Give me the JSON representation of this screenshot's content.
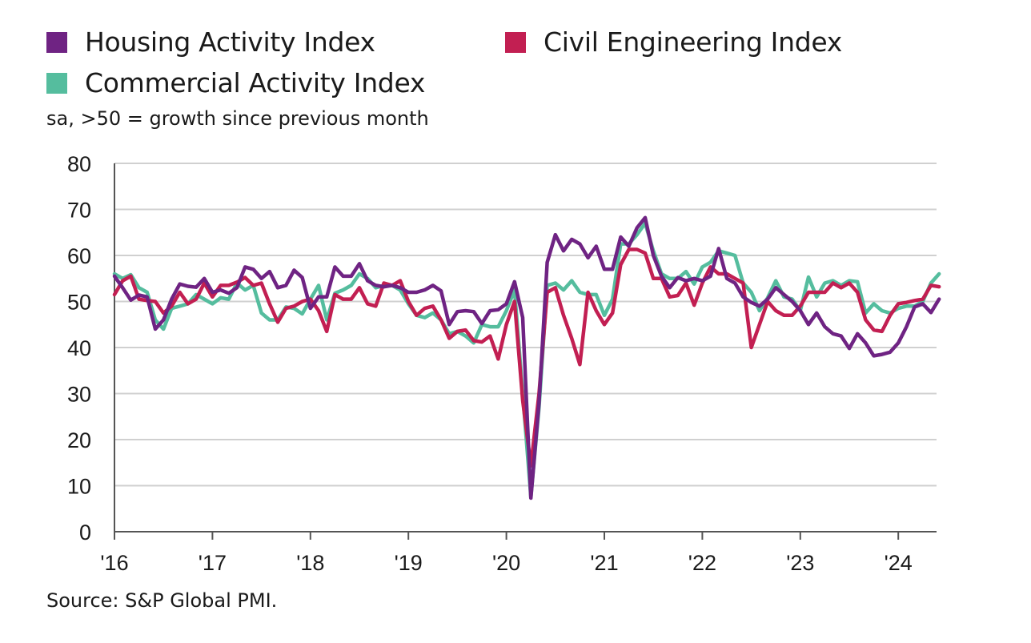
{
  "legend": [
    {
      "label": "Housing Activity Index",
      "color": "#6f2383"
    },
    {
      "label": "Civil Engineering Index",
      "color": "#c21f52"
    },
    {
      "label": "Commercial Activity Index",
      "color": "#55bd9e"
    }
  ],
  "note": "sa, >50 = growth since previous month",
  "source": "Source: S&P Global PMI.",
  "chart_data": {
    "type": "line",
    "x_unit": "monthly, Jan 2016 – Jun 2024",
    "x_ticks": [
      "'16",
      "'17",
      "'18",
      "'19",
      "'20",
      "'21",
      "'22",
      "'23",
      "'24"
    ],
    "y_ticks": [
      0,
      10,
      20,
      30,
      40,
      50,
      60,
      70,
      80
    ],
    "ylim": [
      0,
      80
    ],
    "grid": "horizontal",
    "legend_position": "top",
    "series": [
      {
        "name": "Housing Activity Index",
        "color": "#6f2383",
        "values": [
          55.5,
          53.0,
          50.3,
          51.4,
          51.0,
          44.0,
          46.0,
          50.5,
          53.8,
          53.3,
          53.1,
          55.0,
          52.0,
          52.5,
          51.8,
          53.0,
          57.5,
          57.0,
          55.0,
          56.5,
          53.0,
          53.5,
          56.8,
          55.2,
          48.5,
          51.0,
          51.0,
          57.5,
          55.5,
          55.5,
          58.2,
          54.5,
          53.5,
          53.2,
          53.5,
          53.0,
          52.0,
          52.0,
          52.5,
          53.5,
          52.3,
          45.0,
          47.8,
          48.0,
          47.8,
          45.2,
          48.0,
          48.2,
          49.5,
          54.3,
          46.5,
          7.3,
          28.0,
          58.5,
          64.5,
          61.0,
          63.5,
          62.5,
          59.5,
          62.0,
          57.0,
          57.0,
          64.0,
          62.0,
          66.0,
          68.2,
          60.0,
          55.5,
          53.0,
          55.2,
          54.5,
          55.0,
          54.5,
          55.5,
          61.5,
          55.0,
          54.0,
          51.0,
          49.8,
          49.0,
          50.5,
          53.0,
          51.5,
          50.0,
          48.0,
          45.0,
          47.5,
          44.5,
          43.0,
          42.5,
          39.8,
          43.0,
          41.0,
          38.2,
          38.5,
          39.0,
          41.0,
          44.5,
          48.8,
          49.5,
          47.6,
          50.5
        ]
      },
      {
        "name": "Civil Engineering Index",
        "color": "#c21f52",
        "values": [
          51.5,
          54.5,
          55.5,
          50.5,
          50.2,
          50.0,
          47.5,
          49.0,
          52.0,
          49.5,
          50.5,
          54.0,
          51.0,
          53.5,
          53.5,
          54.2,
          55.2,
          53.5,
          54.0,
          49.5,
          45.5,
          48.5,
          49.0,
          50.0,
          50.5,
          48.0,
          43.5,
          51.5,
          50.5,
          50.5,
          53.0,
          49.5,
          49.0,
          54.0,
          53.5,
          54.5,
          50.0,
          47.0,
          48.5,
          49.0,
          46.0,
          42.0,
          43.5,
          43.8,
          41.5,
          41.2,
          42.5,
          37.5,
          45.0,
          50.0,
          28.5,
          14.3,
          30.0,
          52.0,
          53.0,
          47.0,
          42.0,
          36.3,
          52.0,
          48.0,
          45.0,
          47.5,
          58.0,
          61.3,
          61.3,
          60.5,
          55.0,
          55.0,
          51.0,
          51.3,
          54.0,
          49.2,
          54.0,
          57.5,
          56.0,
          56.0,
          55.0,
          54.0,
          40.0,
          45.0,
          50.0,
          48.0,
          47.0,
          47.0,
          49.0,
          52.0,
          52.0,
          52.0,
          54.0,
          53.0,
          54.0,
          52.0,
          46.0,
          43.8,
          43.5,
          47.0,
          49.5,
          49.8,
          50.2,
          50.5,
          53.5,
          53.2
        ]
      },
      {
        "name": "Commercial Activity Index",
        "color": "#55bd9e",
        "values": [
          56.0,
          55.0,
          55.8,
          53.0,
          52.0,
          46.0,
          44.0,
          48.5,
          49.0,
          49.5,
          51.5,
          50.5,
          49.5,
          50.8,
          50.5,
          54.0,
          52.5,
          53.5,
          47.5,
          46.0,
          46.0,
          48.8,
          48.5,
          47.3,
          50.5,
          53.5,
          46.0,
          51.8,
          52.5,
          53.5,
          56.0,
          55.0,
          53.0,
          53.5,
          53.5,
          52.5,
          49.5,
          47.0,
          46.5,
          47.5,
          46.0,
          43.0,
          43.5,
          42.5,
          41.0,
          45.0,
          44.5,
          44.5,
          48.0,
          52.5,
          30.0,
          7.5,
          27.0,
          53.5,
          54.0,
          52.5,
          54.5,
          52.0,
          51.5,
          51.5,
          47.0,
          50.5,
          62.5,
          62.5,
          64.5,
          67.0,
          61.0,
          56.0,
          55.0,
          55.0,
          56.5,
          53.8,
          57.5,
          58.5,
          61.0,
          60.5,
          60.0,
          54.0,
          52.0,
          48.0,
          50.8,
          54.5,
          51.0,
          50.5,
          48.0,
          55.3,
          51.0,
          54.0,
          54.5,
          53.5,
          54.5,
          54.3,
          47.5,
          49.5,
          48.0,
          47.5,
          48.5,
          49.0,
          49.0,
          50.0,
          54.0,
          56.0
        ]
      }
    ]
  }
}
